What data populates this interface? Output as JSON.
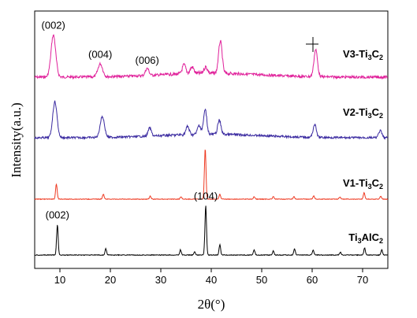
{
  "chart_data": {
    "type": "line",
    "xlabel": "2θ(°)",
    "ylabel": "Intensity(a.u.)",
    "xlim": [
      5,
      75
    ],
    "xticks": [
      "10",
      "20",
      "30",
      "40",
      "50",
      "60",
      "70"
    ],
    "yticks": [],
    "grid": false,
    "legend": "inline labels at right end of each trace",
    "series": [
      {
        "name": "V3-Ti3C2",
        "label_main": "V3-Ti",
        "label_parts": [
          "3",
          "C",
          "2"
        ],
        "color": "#e0209a",
        "baseline": 0.1,
        "peaks": [
          [
            8.7,
            0.65
          ],
          [
            18.0,
            0.2
          ],
          [
            27.3,
            0.11
          ],
          [
            34.6,
            0.14
          ],
          [
            36.2,
            0.1
          ],
          [
            38.9,
            0.1
          ],
          [
            41.8,
            0.5
          ],
          [
            60.7,
            0.42
          ]
        ],
        "annotations": [
          {
            "text": "(002)",
            "x": 8.7
          },
          {
            "text": "(004)",
            "x": 18.0
          },
          {
            "text": "(006)",
            "x": 27.3
          }
        ]
      },
      {
        "name": "V2-Ti3C2",
        "label_main": "V2-Ti",
        "label_parts": [
          "3",
          "C",
          "2"
        ],
        "color": "#3a2aa0",
        "baseline": 0.1,
        "peaks": [
          [
            9.0,
            0.62
          ],
          [
            18.4,
            0.36
          ],
          [
            27.8,
            0.14
          ],
          [
            35.3,
            0.14
          ],
          [
            37.6,
            0.16
          ],
          [
            38.8,
            0.42
          ],
          [
            41.6,
            0.24
          ],
          [
            60.5,
            0.22
          ],
          [
            73.5,
            0.12
          ]
        ],
        "annotations": []
      },
      {
        "name": "V1-Ti3C2",
        "label_main": "V1-Ti",
        "label_parts": [
          "3",
          "C",
          "2"
        ],
        "color": "#ee3a22",
        "baseline": 0.05,
        "peaks": [
          [
            9.3,
            0.3
          ],
          [
            18.6,
            0.1
          ],
          [
            27.9,
            0.06
          ],
          [
            34.0,
            0.05
          ],
          [
            38.8,
            1.0
          ],
          [
            41.7,
            0.1
          ],
          [
            48.5,
            0.05
          ],
          [
            52.3,
            0.05
          ],
          [
            56.4,
            0.05
          ],
          [
            60.3,
            0.07
          ],
          [
            65.5,
            0.04
          ],
          [
            70.3,
            0.13
          ],
          [
            73.6,
            0.06
          ]
        ],
        "annotations": []
      },
      {
        "name": "Ti3AlC2",
        "label_main": "Ti",
        "label_parts": [
          "3",
          "AlC",
          "2"
        ],
        "color": "#000000",
        "baseline": 0.05,
        "peaks": [
          [
            9.5,
            0.58
          ],
          [
            19.1,
            0.12
          ],
          [
            33.9,
            0.1
          ],
          [
            36.7,
            0.06
          ],
          [
            38.9,
            0.95
          ],
          [
            41.7,
            0.2
          ],
          [
            48.5,
            0.1
          ],
          [
            52.3,
            0.08
          ],
          [
            56.5,
            0.12
          ],
          [
            60.2,
            0.1
          ],
          [
            65.6,
            0.06
          ],
          [
            70.4,
            0.14
          ],
          [
            73.8,
            0.1
          ]
        ],
        "annotations": [
          {
            "text": "(002)",
            "x": 9.5
          },
          {
            "text": "(104)",
            "x": 38.9
          }
        ]
      }
    ]
  }
}
